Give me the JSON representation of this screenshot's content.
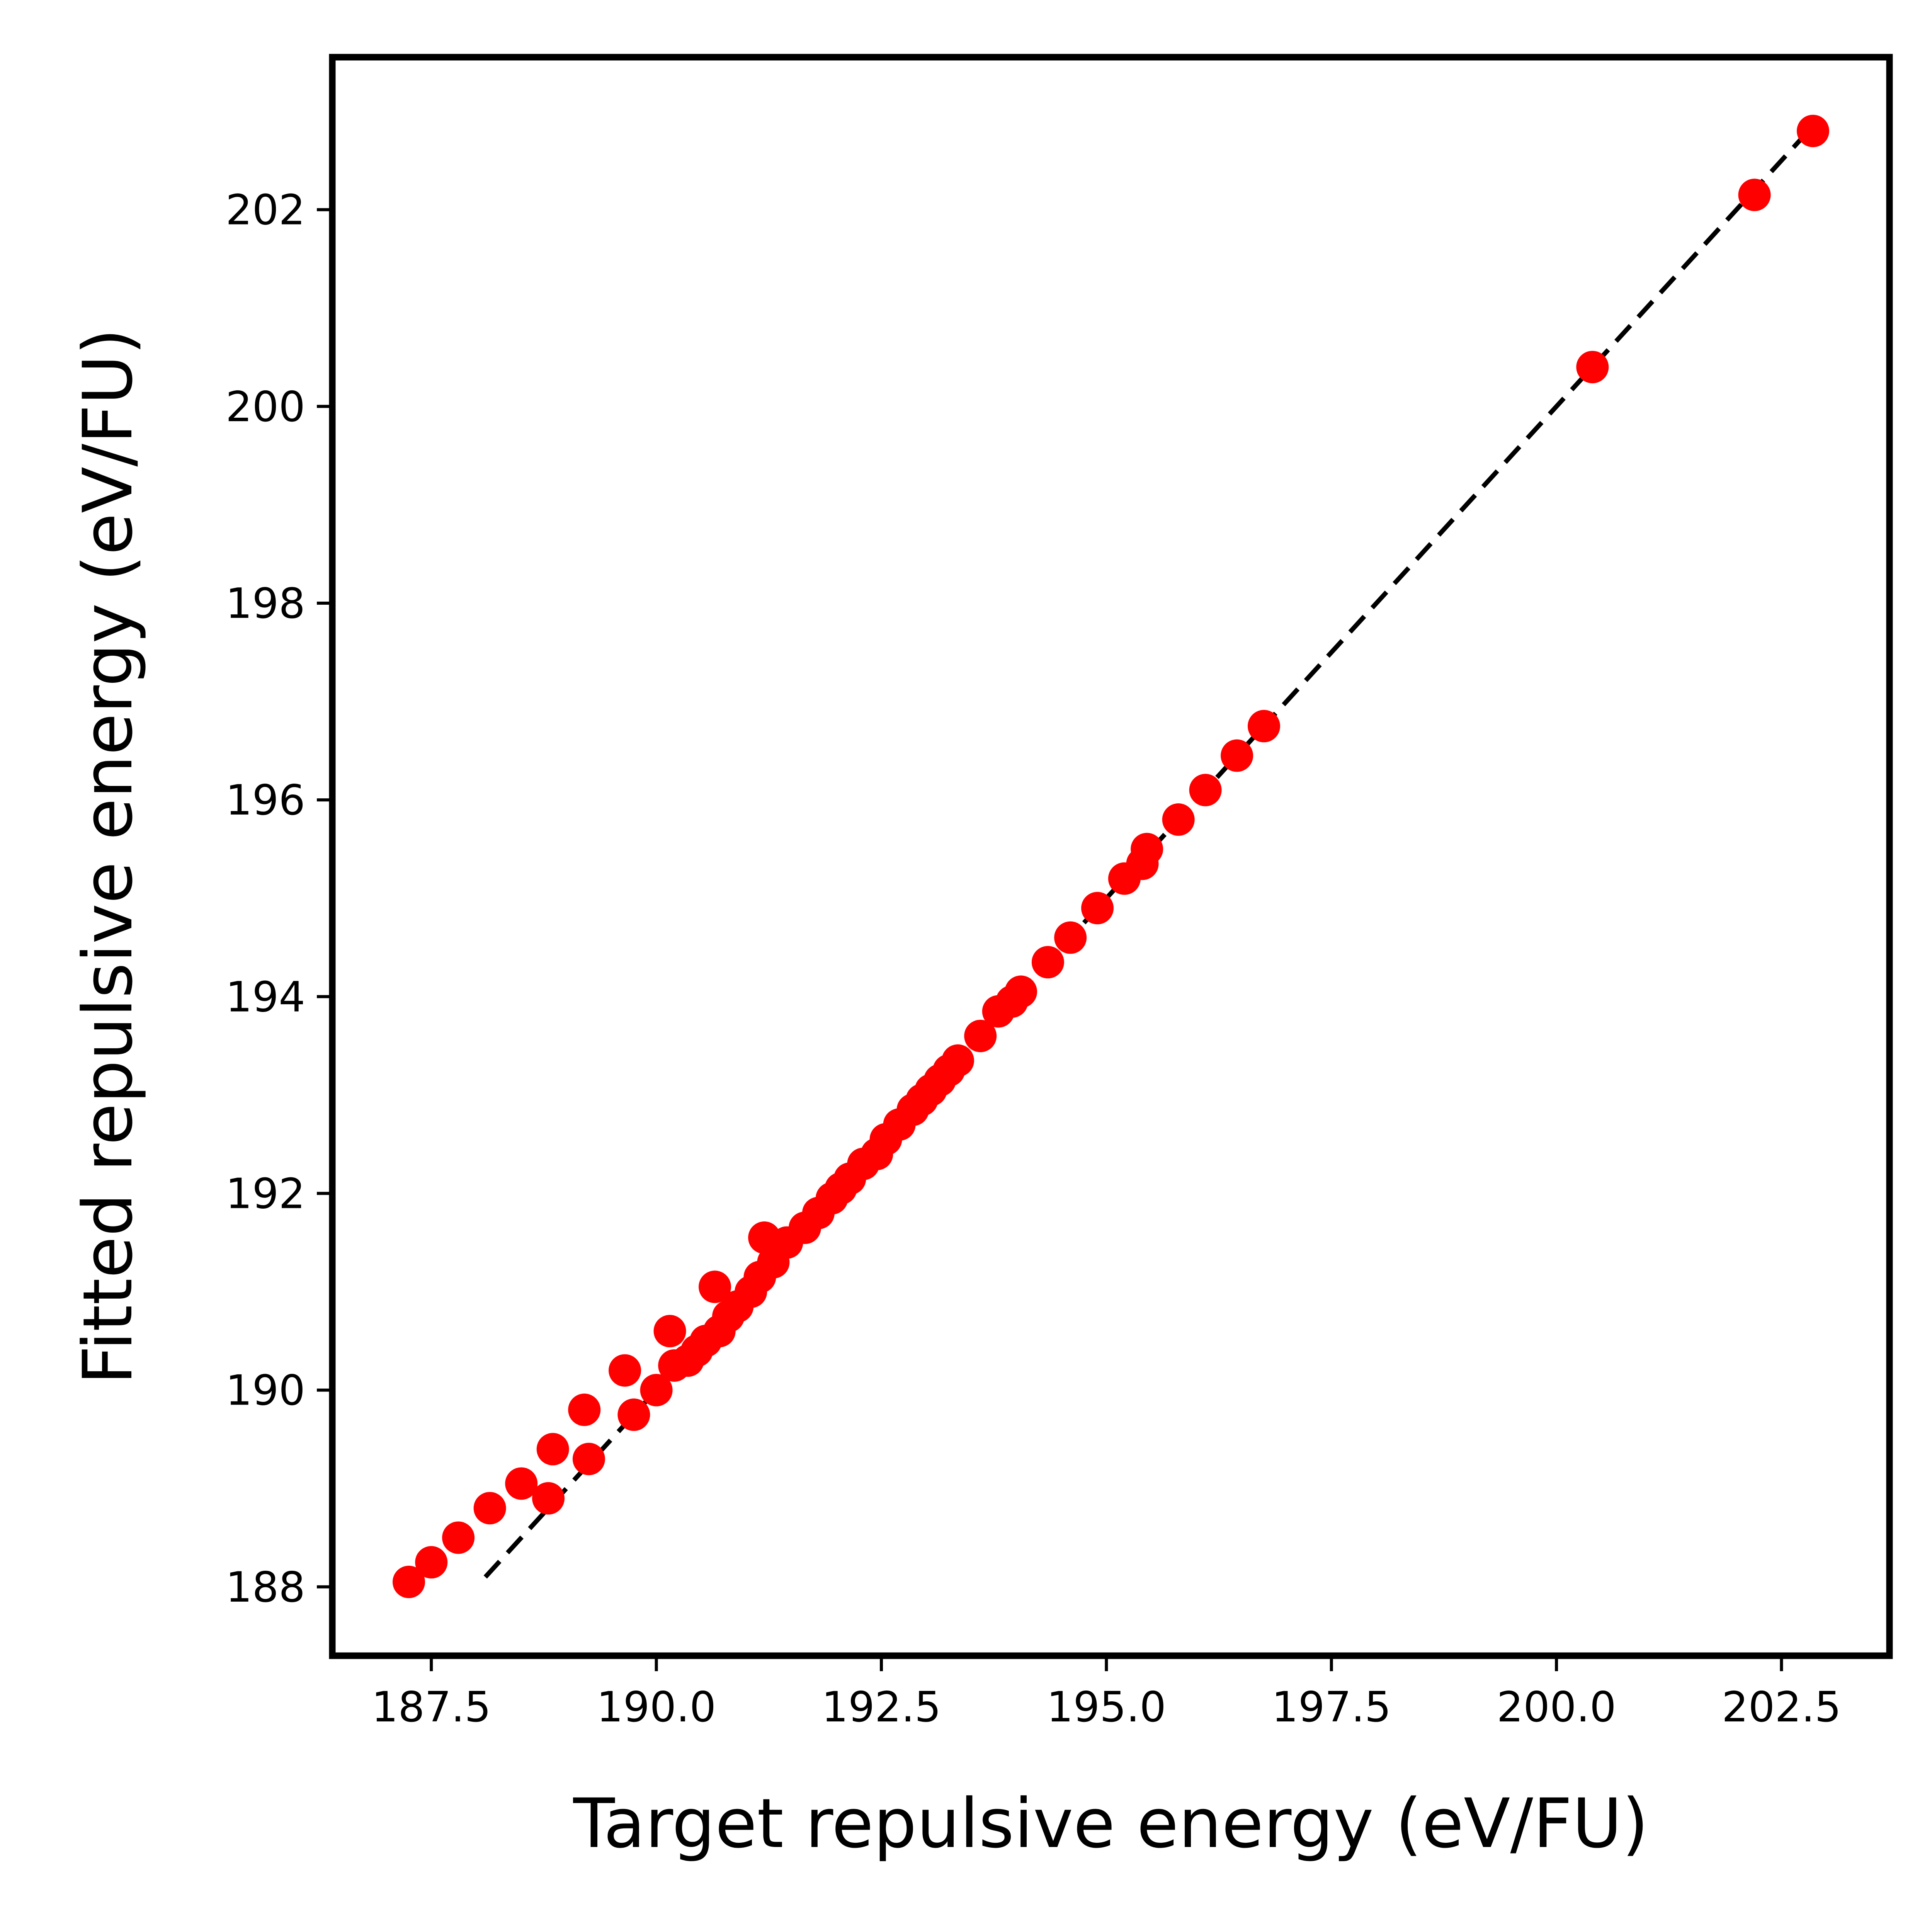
{
  "chart_data": {
    "type": "scatter",
    "title": "",
    "xlabel": "Target repulsive energy (eV/FU)",
    "ylabel": "Fitted repulsive energy (eV/FU)",
    "xlim": [
      186.4,
      203.7
    ],
    "ylim": [
      187.3,
      203.55
    ],
    "xticks": [
      187.5,
      190.0,
      192.5,
      195.0,
      197.5,
      200.0,
      202.5
    ],
    "xtick_labels": [
      "187.5",
      "190.0",
      "192.5",
      "195.0",
      "197.5",
      "200.0",
      "202.5"
    ],
    "yticks": [
      188,
      190,
      192,
      194,
      196,
      198,
      200,
      202
    ],
    "ytick_labels": [
      "188",
      "190",
      "192",
      "194",
      "196",
      "198",
      "200",
      "202"
    ],
    "grid": false,
    "legend": "none",
    "reference_line": {
      "x": [
        188.1,
        202.85
      ],
      "y": [
        188.1,
        202.85
      ],
      "style": "dashed",
      "color": "#000000"
    },
    "series": [
      {
        "color": "#ff0000",
        "x": [
          187.25,
          187.5,
          187.8,
          188.15,
          188.5,
          188.85,
          188.8,
          189.2,
          189.25,
          189.65,
          189.75,
          190.0,
          190.15,
          190.2,
          190.35,
          190.45,
          190.55,
          190.65,
          190.7,
          190.8,
          190.9,
          191.05,
          191.15,
          191.2,
          191.3,
          191.45,
          191.65,
          191.8,
          191.95,
          192.05,
          192.15,
          192.3,
          192.45,
          192.55,
          192.7,
          192.85,
          192.95,
          193.05,
          193.15,
          193.25,
          193.35,
          193.6,
          193.8,
          193.95,
          194.05,
          194.35,
          194.6,
          194.9,
          195.2,
          195.4,
          195.45,
          195.8,
          196.1,
          196.45,
          196.75,
          200.4,
          202.2,
          202.85
        ],
        "y": [
          188.05,
          188.25,
          188.5,
          188.8,
          189.05,
          189.4,
          188.9,
          189.8,
          189.3,
          190.2,
          189.75,
          190.0,
          190.6,
          190.25,
          190.3,
          190.4,
          190.5,
          191.05,
          190.6,
          190.75,
          190.85,
          191.0,
          191.15,
          191.55,
          191.3,
          191.5,
          191.65,
          191.8,
          191.95,
          192.05,
          192.15,
          192.3,
          192.4,
          192.55,
          192.7,
          192.85,
          192.95,
          193.05,
          193.15,
          193.25,
          193.35,
          193.6,
          193.85,
          193.95,
          194.05,
          194.35,
          194.6,
          194.9,
          195.2,
          195.35,
          195.5,
          195.8,
          196.1,
          196.45,
          196.75,
          200.4,
          202.15,
          202.8
        ]
      }
    ]
  }
}
